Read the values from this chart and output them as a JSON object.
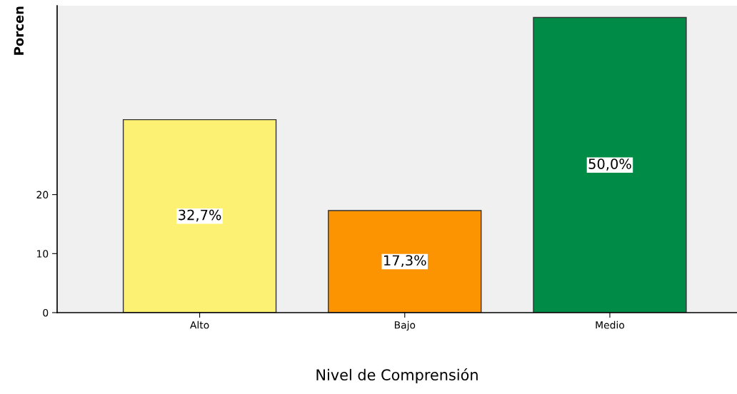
{
  "chart_data": {
    "type": "bar",
    "xlabel": "Nivel de Comprensión",
    "ylabel": "Porcen",
    "categories": [
      "Alto",
      "Bajo",
      "Medio"
    ],
    "values": [
      32.7,
      17.3,
      50.0
    ],
    "colors": [
      "#fdf173",
      "#fb9400",
      "#008c47"
    ],
    "value_labels": [
      "32,7%",
      "17,3%",
      "50,0%"
    ],
    "ylim": [
      0,
      52
    ],
    "yticks": [
      0,
      10,
      20
    ],
    "grid": false,
    "legend": false
  }
}
